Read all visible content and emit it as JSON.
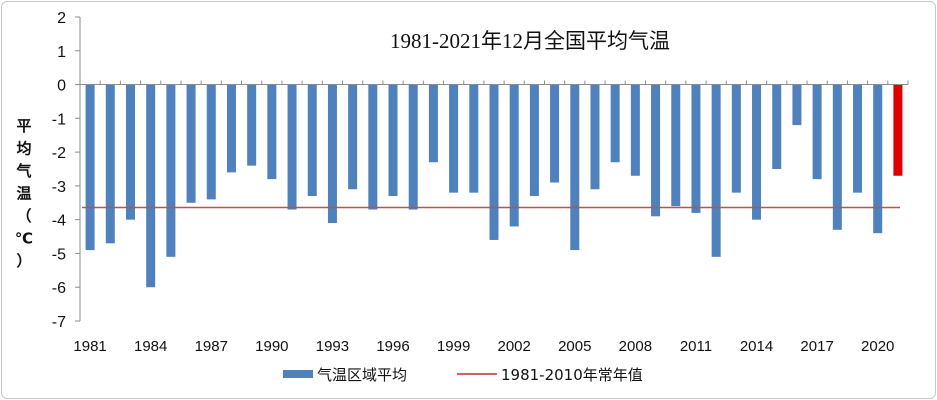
{
  "chart_data": {
    "type": "bar",
    "title": "1981-2021年12月全国平均气温",
    "ylabel": "平均气温（℃）",
    "ylabel_chars": [
      "平",
      "均",
      "气",
      "温",
      "（",
      "℃",
      "）"
    ],
    "ylim": [
      -7,
      2
    ],
    "yticks": [
      2,
      1,
      0,
      -1,
      -2,
      -3,
      -4,
      -5,
      -6,
      -7
    ],
    "xtick_labels": [
      "1981",
      "1984",
      "1987",
      "1990",
      "1993",
      "1996",
      "1999",
      "2002",
      "2005",
      "2008",
      "2011",
      "2014",
      "2017",
      "2020"
    ],
    "categories": [
      "1981",
      "1982",
      "1983",
      "1984",
      "1985",
      "1986",
      "1987",
      "1988",
      "1989",
      "1990",
      "1991",
      "1992",
      "1993",
      "1994",
      "1995",
      "1996",
      "1997",
      "1998",
      "1999",
      "2000",
      "2001",
      "2002",
      "2003",
      "2004",
      "2005",
      "2006",
      "2007",
      "2008",
      "2009",
      "2010",
      "2011",
      "2012",
      "2013",
      "2014",
      "2015",
      "2016",
      "2017",
      "2018",
      "2019",
      "2020",
      "2021"
    ],
    "series": [
      {
        "name": "气温区域平均",
        "color": "#4f81bd",
        "highlight_color": "#e00000",
        "highlight_category": "2021",
        "values": [
          -4.9,
          -4.7,
          -4.0,
          -6.0,
          -5.1,
          -3.5,
          -3.4,
          -2.6,
          -2.4,
          -2.8,
          -3.7,
          -3.3,
          -4.1,
          -3.1,
          -3.7,
          -3.3,
          -3.7,
          -2.3,
          -3.2,
          -3.2,
          -4.6,
          -4.2,
          -3.3,
          -2.9,
          -4.9,
          -3.1,
          -2.3,
          -2.7,
          -3.9,
          -3.6,
          -3.8,
          -5.1,
          -3.2,
          -4.0,
          -2.5,
          -1.2,
          -2.8,
          -4.3,
          -3.2,
          -4.4,
          -2.7
        ]
      }
    ],
    "reference_line": {
      "name": "1981-2010年常年值",
      "value": -3.64,
      "color": "#c0504d"
    },
    "legend": {
      "position": "bottom",
      "items": [
        {
          "label": "气温区域平均",
          "kind": "bar",
          "color": "#4f81bd"
        },
        {
          "label": "1981-2010年常年值",
          "kind": "line",
          "color": "#c0504d"
        }
      ]
    },
    "grid": false
  }
}
